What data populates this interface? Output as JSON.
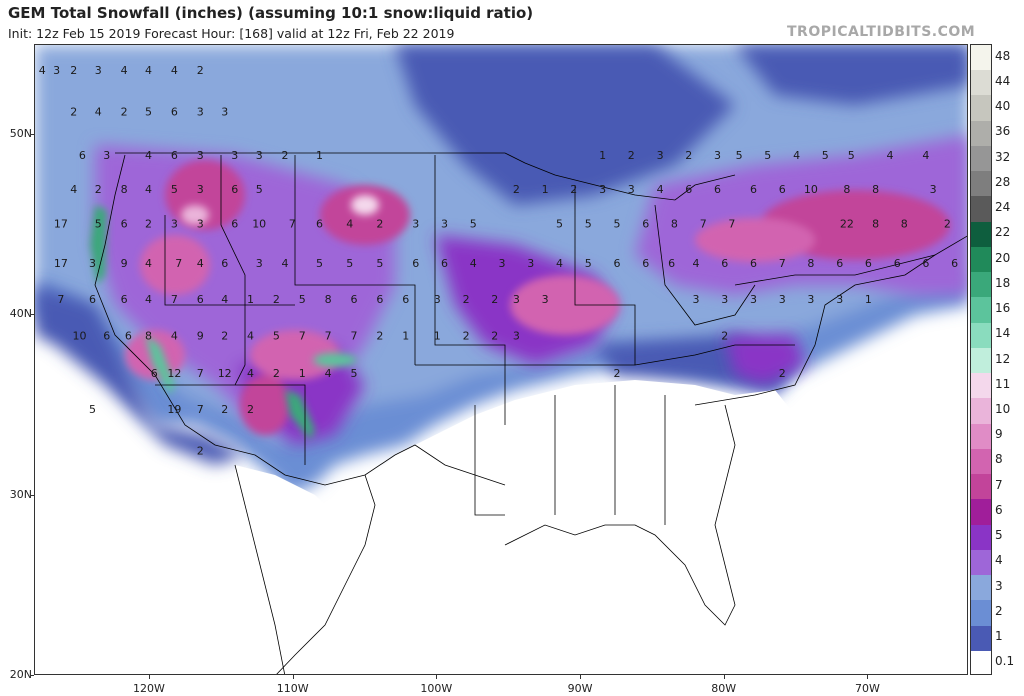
{
  "header": {
    "title": "GEM Total Snowfall (inches) (assuming 10:1 snow:liquid ratio)",
    "subtitle": "Init: 12z Feb 15 2019   Forecast Hour: [168]   valid at 12z Fri, Feb 22 2019",
    "watermark": "TROPICALTIDBITS.COM"
  },
  "axes": {
    "lat_labels": [
      {
        "text": "50N",
        "lat": 50
      },
      {
        "text": "40N",
        "lat": 40
      },
      {
        "text": "30N",
        "lat": 30
      },
      {
        "text": "20N",
        "lat": 20
      }
    ],
    "lon_labels": [
      {
        "text": "120W",
        "lon": -120
      },
      {
        "text": "110W",
        "lon": -110
      },
      {
        "text": "100W",
        "lon": -100
      },
      {
        "text": "90W",
        "lon": -90
      },
      {
        "text": "80W",
        "lon": -80
      },
      {
        "text": "70W",
        "lon": -70
      }
    ]
  },
  "colorbar": {
    "labels": [
      "48",
      "44",
      "40",
      "36",
      "32",
      "28",
      "24",
      "22",
      "20",
      "18",
      "16",
      "14",
      "12",
      "11",
      "10",
      "9",
      "8",
      "7",
      "6",
      "5",
      "4",
      "3",
      "2",
      "1",
      "0.1"
    ],
    "colors": [
      "#f4f4ec",
      "#dcdcd4",
      "#c6c6be",
      "#aeaeaa",
      "#969696",
      "#7e7e7e",
      "#5a5a5a",
      "#0e5e3e",
      "#208a5a",
      "#3aa87a",
      "#5cc49c",
      "#8adcbe",
      "#c0eedc",
      "#f4d8ec",
      "#eab4da",
      "#e08cc6",
      "#d264b0",
      "#c2449a",
      "#a01e9a",
      "#8a34c6",
      "#9e66d8",
      "#8aa8dc",
      "#6b8ed4",
      "#4a5ab4",
      "#ffffff"
    ]
  },
  "map_data": {
    "projection": "equirectangular",
    "lon_range": [
      -128,
      -63
    ],
    "lat_range": [
      20,
      55
    ],
    "values": [
      {
        "v": "4",
        "lon": -127.5,
        "lat": 53.6
      },
      {
        "v": "3",
        "lon": -126.5,
        "lat": 53.6
      },
      {
        "v": "2",
        "lon": -125.3,
        "lat": 53.6
      },
      {
        "v": "3",
        "lon": -123.6,
        "lat": 53.6
      },
      {
        "v": "4",
        "lon": -121.8,
        "lat": 53.6
      },
      {
        "v": "4",
        "lon": -120.1,
        "lat": 53.6
      },
      {
        "v": "4",
        "lon": -118.3,
        "lat": 53.6
      },
      {
        "v": "2",
        "lon": -116.5,
        "lat": 53.6
      },
      {
        "v": "2",
        "lon": -125.3,
        "lat": 51.3
      },
      {
        "v": "4",
        "lon": -123.6,
        "lat": 51.3
      },
      {
        "v": "2",
        "lon": -121.8,
        "lat": 51.3
      },
      {
        "v": "5",
        "lon": -120.1,
        "lat": 51.3
      },
      {
        "v": "6",
        "lon": -118.3,
        "lat": 51.3
      },
      {
        "v": "3",
        "lon": -116.5,
        "lat": 51.3
      },
      {
        "v": "3",
        "lon": -114.8,
        "lat": 51.3
      },
      {
        "v": "6",
        "lon": -124.7,
        "lat": 48.9
      },
      {
        "v": "3",
        "lon": -123.0,
        "lat": 48.9
      },
      {
        "v": "4",
        "lon": -120.1,
        "lat": 48.9
      },
      {
        "v": "6",
        "lon": -118.3,
        "lat": 48.9
      },
      {
        "v": "3",
        "lon": -116.5,
        "lat": 48.9
      },
      {
        "v": "3",
        "lon": -114.1,
        "lat": 48.9
      },
      {
        "v": "3",
        "lon": -112.4,
        "lat": 48.9
      },
      {
        "v": "2",
        "lon": -110.6,
        "lat": 48.9
      },
      {
        "v": "1",
        "lon": -108.2,
        "lat": 48.9
      },
      {
        "v": "4",
        "lon": -125.3,
        "lat": 47.0
      },
      {
        "v": "2",
        "lon": -123.6,
        "lat": 47.0
      },
      {
        "v": "8",
        "lon": -121.8,
        "lat": 47.0
      },
      {
        "v": "4",
        "lon": -120.1,
        "lat": 47.0
      },
      {
        "v": "5",
        "lon": -118.3,
        "lat": 47.0
      },
      {
        "v": "3",
        "lon": -116.5,
        "lat": 47.0
      },
      {
        "v": "6",
        "lon": -114.1,
        "lat": 47.0
      },
      {
        "v": "5",
        "lon": -112.4,
        "lat": 47.0
      },
      {
        "v": "17",
        "lon": -126.2,
        "lat": 45.1
      },
      {
        "v": "5",
        "lon": -123.6,
        "lat": 45.1
      },
      {
        "v": "6",
        "lon": -121.8,
        "lat": 45.1
      },
      {
        "v": "2",
        "lon": -120.1,
        "lat": 45.1
      },
      {
        "v": "3",
        "lon": -118.3,
        "lat": 45.1
      },
      {
        "v": "3",
        "lon": -116.5,
        "lat": 45.1
      },
      {
        "v": "6",
        "lon": -114.1,
        "lat": 45.1
      },
      {
        "v": "10",
        "lon": -112.4,
        "lat": 45.1
      },
      {
        "v": "7",
        "lon": -110.1,
        "lat": 45.1
      },
      {
        "v": "6",
        "lon": -108.2,
        "lat": 45.1
      },
      {
        "v": "4",
        "lon": -106.1,
        "lat": 45.1
      },
      {
        "v": "2",
        "lon": -104.0,
        "lat": 45.1
      },
      {
        "v": "3",
        "lon": -101.5,
        "lat": 45.1
      },
      {
        "v": "3",
        "lon": -99.5,
        "lat": 45.1
      },
      {
        "v": "5",
        "lon": -97.5,
        "lat": 45.1
      },
      {
        "v": "17",
        "lon": -126.2,
        "lat": 42.9
      },
      {
        "v": "3",
        "lon": -124.0,
        "lat": 42.9
      },
      {
        "v": "9",
        "lon": -121.8,
        "lat": 42.9
      },
      {
        "v": "4",
        "lon": -120.1,
        "lat": 42.9
      },
      {
        "v": "7",
        "lon": -118.0,
        "lat": 42.9
      },
      {
        "v": "4",
        "lon": -116.5,
        "lat": 42.9
      },
      {
        "v": "6",
        "lon": -114.8,
        "lat": 42.9
      },
      {
        "v": "3",
        "lon": -112.4,
        "lat": 42.9
      },
      {
        "v": "4",
        "lon": -110.6,
        "lat": 42.9
      },
      {
        "v": "5",
        "lon": -108.2,
        "lat": 42.9
      },
      {
        "v": "5",
        "lon": -106.1,
        "lat": 42.9
      },
      {
        "v": "5",
        "lon": -104.0,
        "lat": 42.9
      },
      {
        "v": "6",
        "lon": -101.5,
        "lat": 42.9
      },
      {
        "v": "6",
        "lon": -99.5,
        "lat": 42.9
      },
      {
        "v": "4",
        "lon": -97.5,
        "lat": 42.9
      },
      {
        "v": "3",
        "lon": -95.5,
        "lat": 42.9
      },
      {
        "v": "3",
        "lon": -93.5,
        "lat": 42.9
      },
      {
        "v": "4",
        "lon": -91.5,
        "lat": 42.9
      },
      {
        "v": "5",
        "lon": -89.5,
        "lat": 42.9
      },
      {
        "v": "6",
        "lon": -87.5,
        "lat": 42.9
      },
      {
        "v": "6",
        "lon": -85.5,
        "lat": 42.9
      },
      {
        "v": "6",
        "lon": -83.7,
        "lat": 42.9
      },
      {
        "v": "7",
        "lon": -126.2,
        "lat": 40.9
      },
      {
        "v": "6",
        "lon": -124.0,
        "lat": 40.9
      },
      {
        "v": "6",
        "lon": -121.8,
        "lat": 40.9
      },
      {
        "v": "4",
        "lon": -120.1,
        "lat": 40.9
      },
      {
        "v": "7",
        "lon": -118.3,
        "lat": 40.9
      },
      {
        "v": "6",
        "lon": -116.5,
        "lat": 40.9
      },
      {
        "v": "4",
        "lon": -114.8,
        "lat": 40.9
      },
      {
        "v": "1",
        "lon": -113.0,
        "lat": 40.9
      },
      {
        "v": "2",
        "lon": -111.2,
        "lat": 40.9
      },
      {
        "v": "5",
        "lon": -109.4,
        "lat": 40.9
      },
      {
        "v": "8",
        "lon": -107.6,
        "lat": 40.9
      },
      {
        "v": "6",
        "lon": -105.8,
        "lat": 40.9
      },
      {
        "v": "6",
        "lon": -104.0,
        "lat": 40.9
      },
      {
        "v": "6",
        "lon": -102.2,
        "lat": 40.9
      },
      {
        "v": "3",
        "lon": -100.0,
        "lat": 40.9
      },
      {
        "v": "2",
        "lon": -98.0,
        "lat": 40.9
      },
      {
        "v": "2",
        "lon": -96.0,
        "lat": 40.9
      },
      {
        "v": "3",
        "lon": -94.5,
        "lat": 40.9
      },
      {
        "v": "3",
        "lon": -92.5,
        "lat": 40.9
      },
      {
        "v": "10",
        "lon": -124.9,
        "lat": 38.9
      },
      {
        "v": "6",
        "lon": -123.0,
        "lat": 38.9
      },
      {
        "v": "6",
        "lon": -121.5,
        "lat": 38.9
      },
      {
        "v": "8",
        "lon": -120.1,
        "lat": 38.9
      },
      {
        "v": "4",
        "lon": -118.3,
        "lat": 38.9
      },
      {
        "v": "9",
        "lon": -116.5,
        "lat": 38.9
      },
      {
        "v": "2",
        "lon": -114.8,
        "lat": 38.9
      },
      {
        "v": "4",
        "lon": -113.0,
        "lat": 38.9
      },
      {
        "v": "5",
        "lon": -111.2,
        "lat": 38.9
      },
      {
        "v": "7",
        "lon": -109.4,
        "lat": 38.9
      },
      {
        "v": "7",
        "lon": -107.6,
        "lat": 38.9
      },
      {
        "v": "7",
        "lon": -105.8,
        "lat": 38.9
      },
      {
        "v": "2",
        "lon": -104.0,
        "lat": 38.9
      },
      {
        "v": "1",
        "lon": -102.2,
        "lat": 38.9
      },
      {
        "v": "1",
        "lon": -100.0,
        "lat": 38.9
      },
      {
        "v": "2",
        "lon": -98.0,
        "lat": 38.9
      },
      {
        "v": "2",
        "lon": -96.0,
        "lat": 38.9
      },
      {
        "v": "3",
        "lon": -94.5,
        "lat": 38.9
      },
      {
        "v": "6",
        "lon": -119.7,
        "lat": 36.8
      },
      {
        "v": "12",
        "lon": -118.3,
        "lat": 36.8
      },
      {
        "v": "7",
        "lon": -116.5,
        "lat": 36.8
      },
      {
        "v": "12",
        "lon": -114.8,
        "lat": 36.8
      },
      {
        "v": "4",
        "lon": -113.0,
        "lat": 36.8
      },
      {
        "v": "2",
        "lon": -111.2,
        "lat": 36.8
      },
      {
        "v": "1",
        "lon": -109.4,
        "lat": 36.8
      },
      {
        "v": "4",
        "lon": -107.6,
        "lat": 36.8
      },
      {
        "v": "5",
        "lon": -105.8,
        "lat": 36.8
      },
      {
        "v": "2",
        "lon": -87.5,
        "lat": 36.8
      },
      {
        "v": "5",
        "lon": -124.0,
        "lat": 34.8
      },
      {
        "v": "19",
        "lon": -118.3,
        "lat": 34.8
      },
      {
        "v": "7",
        "lon": -116.5,
        "lat": 34.8
      },
      {
        "v": "2",
        "lon": -114.8,
        "lat": 34.8
      },
      {
        "v": "2",
        "lon": -113.0,
        "lat": 34.8
      },
      {
        "v": "2",
        "lon": -116.5,
        "lat": 32.5
      },
      {
        "v": "1",
        "lon": -88.5,
        "lat": 48.9
      },
      {
        "v": "2",
        "lon": -86.5,
        "lat": 48.9
      },
      {
        "v": "3",
        "lon": -84.5,
        "lat": 48.9
      },
      {
        "v": "2",
        "lon": -82.5,
        "lat": 48.9
      },
      {
        "v": "3",
        "lon": -80.5,
        "lat": 48.9
      },
      {
        "v": "5",
        "lon": -79.0,
        "lat": 48.9
      },
      {
        "v": "5",
        "lon": -77.0,
        "lat": 48.9
      },
      {
        "v": "4",
        "lon": -75.0,
        "lat": 48.9
      },
      {
        "v": "5",
        "lon": -73.0,
        "lat": 48.9
      },
      {
        "v": "5",
        "lon": -71.2,
        "lat": 48.9
      },
      {
        "v": "4",
        "lon": -68.5,
        "lat": 48.9
      },
      {
        "v": "4",
        "lon": -66.0,
        "lat": 48.9
      },
      {
        "v": "2",
        "lon": -94.5,
        "lat": 47.0
      },
      {
        "v": "1",
        "lon": -92.5,
        "lat": 47.0
      },
      {
        "v": "2",
        "lon": -90.5,
        "lat": 47.0
      },
      {
        "v": "3",
        "lon": -88.5,
        "lat": 47.0
      },
      {
        "v": "3",
        "lon": -86.5,
        "lat": 47.0
      },
      {
        "v": "4",
        "lon": -84.5,
        "lat": 47.0
      },
      {
        "v": "6",
        "lon": -82.5,
        "lat": 47.0
      },
      {
        "v": "6",
        "lon": -80.5,
        "lat": 47.0
      },
      {
        "v": "6",
        "lon": -78.0,
        "lat": 47.0
      },
      {
        "v": "6",
        "lon": -76.0,
        "lat": 47.0
      },
      {
        "v": "10",
        "lon": -74.0,
        "lat": 47.0
      },
      {
        "v": "8",
        "lon": -71.5,
        "lat": 47.0
      },
      {
        "v": "8",
        "lon": -69.5,
        "lat": 47.0
      },
      {
        "v": "3",
        "lon": -65.5,
        "lat": 47.0
      },
      {
        "v": "5",
        "lon": -91.5,
        "lat": 45.1
      },
      {
        "v": "5",
        "lon": -89.5,
        "lat": 45.1
      },
      {
        "v": "5",
        "lon": -87.5,
        "lat": 45.1
      },
      {
        "v": "6",
        "lon": -85.5,
        "lat": 45.1
      },
      {
        "v": "8",
        "lon": -83.5,
        "lat": 45.1
      },
      {
        "v": "7",
        "lon": -81.5,
        "lat": 45.1
      },
      {
        "v": "7",
        "lon": -79.5,
        "lat": 45.1
      },
      {
        "v": "22",
        "lon": -71.5,
        "lat": 45.1
      },
      {
        "v": "8",
        "lon": -69.5,
        "lat": 45.1
      },
      {
        "v": "8",
        "lon": -67.5,
        "lat": 45.1
      },
      {
        "v": "2",
        "lon": -64.5,
        "lat": 45.1
      },
      {
        "v": "4",
        "lon": -82.0,
        "lat": 42.9
      },
      {
        "v": "6",
        "lon": -80.0,
        "lat": 42.9
      },
      {
        "v": "6",
        "lon": -78.0,
        "lat": 42.9
      },
      {
        "v": "7",
        "lon": -76.0,
        "lat": 42.9
      },
      {
        "v": "8",
        "lon": -74.0,
        "lat": 42.9
      },
      {
        "v": "6",
        "lon": -72.0,
        "lat": 42.9
      },
      {
        "v": "6",
        "lon": -70.0,
        "lat": 42.9
      },
      {
        "v": "6",
        "lon": -68.0,
        "lat": 42.9
      },
      {
        "v": "6",
        "lon": -66.0,
        "lat": 42.9
      },
      {
        "v": "6",
        "lon": -64.0,
        "lat": 42.9
      },
      {
        "v": "3",
        "lon": -82.0,
        "lat": 40.9
      },
      {
        "v": "3",
        "lon": -80.0,
        "lat": 40.9
      },
      {
        "v": "3",
        "lon": -78.0,
        "lat": 40.9
      },
      {
        "v": "3",
        "lon": -76.0,
        "lat": 40.9
      },
      {
        "v": "3",
        "lon": -74.0,
        "lat": 40.9
      },
      {
        "v": "3",
        "lon": -72.0,
        "lat": 40.9
      },
      {
        "v": "1",
        "lon": -70.0,
        "lat": 40.9
      },
      {
        "v": "2",
        "lon": -76.0,
        "lat": 36.8
      },
      {
        "v": "2",
        "lon": -80.0,
        "lat": 38.9
      }
    ]
  }
}
